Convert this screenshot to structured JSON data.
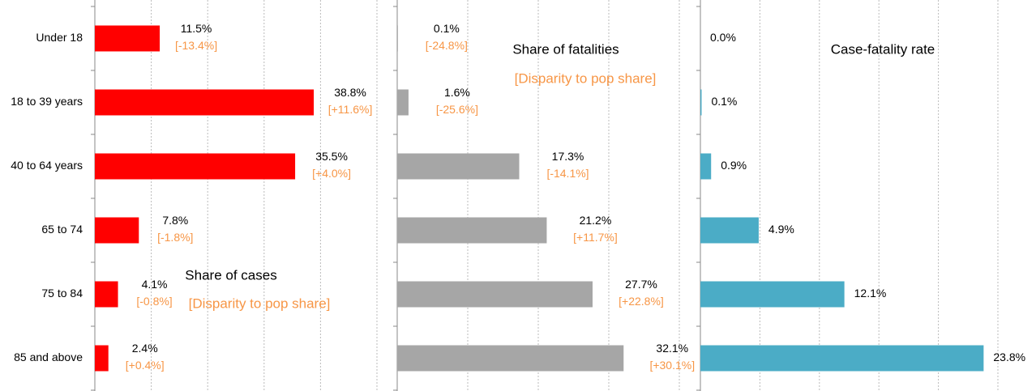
{
  "chart_data": [
    {
      "type": "bar",
      "orientation": "horizontal",
      "title": "Share of cases",
      "subtitle": "[Disparity to pop share]",
      "categories": [
        "Under 18",
        "18 to 39 years",
        "40 to 64 years",
        "65 to 74",
        "75 to 84",
        "85 and above"
      ],
      "values": [
        11.5,
        38.8,
        35.5,
        7.8,
        4.1,
        2.4
      ],
      "value_labels": [
        "11.5%",
        "38.8%",
        "35.5%",
        "7.8%",
        "4.1%",
        "2.4%"
      ],
      "disparity": [
        -13.4,
        11.6,
        4.0,
        -1.8,
        -0.8,
        0.4
      ],
      "disparity_labels": [
        "[-13.4%]",
        "[+11.6%]",
        "[+4.0%]",
        "[-1.8%]",
        "[-0.8%]",
        "[+0.4%]"
      ],
      "color": "#ff0000",
      "xlim": [
        0,
        50
      ],
      "xticks": [
        0,
        10,
        20,
        30,
        40,
        50
      ],
      "grid": true
    },
    {
      "type": "bar",
      "orientation": "horizontal",
      "title": "Share of fatalities",
      "subtitle": "[Disparity to pop share]",
      "values": [
        0.1,
        1.6,
        17.3,
        21.2,
        27.7,
        32.1
      ],
      "value_labels": [
        "0.1%",
        "1.6%",
        "17.3%",
        "21.2%",
        "27.7%",
        "32.1%"
      ],
      "disparity": [
        -24.8,
        -25.6,
        -14.1,
        11.7,
        22.8,
        30.1
      ],
      "disparity_labels": [
        "[-24.8%]",
        "[-25.6%]",
        "[-14.1%]",
        "[+11.7%]",
        "[+22.8%]",
        "[+30.1%]"
      ],
      "color": "#a6a6a6",
      "xlim": [
        0,
        40
      ],
      "xticks": [
        0,
        10,
        20,
        30,
        40
      ],
      "grid": true
    },
    {
      "type": "bar",
      "orientation": "horizontal",
      "title": "Case-fatality rate",
      "values": [
        0.0,
        0.1,
        0.9,
        4.9,
        12.1,
        23.8
      ],
      "value_labels": [
        "0.0%",
        "0.1%",
        "0.9%",
        "4.9%",
        "12.1%",
        "23.8%"
      ],
      "color": "#4bacc6",
      "xlim": [
        0,
        25
      ],
      "xticks": [
        0,
        5,
        10,
        15,
        20,
        25
      ],
      "grid": true
    }
  ]
}
